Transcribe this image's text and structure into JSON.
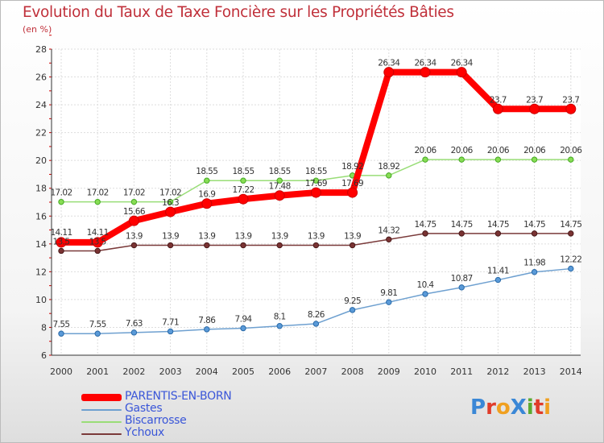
{
  "title": "Evolution du Taux de Taxe Foncière sur les Propriétés Bâties",
  "unit": "(en %)",
  "logo": {
    "text": "ProXiti",
    "colors": [
      "#3a87d6",
      "#e03c2a",
      "#f0a020",
      "#3a87d6",
      "#5aaa30",
      "#e03c2a",
      "#f0a020"
    ]
  },
  "chart_data": {
    "type": "line",
    "x": [
      "2000",
      "2001",
      "2002",
      "2003",
      "2004",
      "2005",
      "2006",
      "2007",
      "2008",
      "2009",
      "2010",
      "2011",
      "2012",
      "2013",
      "2014"
    ],
    "ylim": [
      6,
      28
    ],
    "yticks": [
      6,
      8,
      10,
      12,
      14,
      16,
      18,
      20,
      22,
      24,
      26,
      28
    ],
    "grid": true,
    "legend_position": "bottom-left",
    "series": [
      {
        "name": "PARENTIS-EN-BORN",
        "color": "#ff0000",
        "values": [
          14.11,
          14.11,
          15.66,
          16.3,
          16.9,
          17.22,
          17.48,
          17.69,
          17.69,
          26.34,
          26.34,
          26.34,
          23.7,
          23.7,
          23.7
        ],
        "labels": [
          "14.11",
          "14.11",
          "15.66",
          "16.3",
          "16.9",
          "17.22",
          "17.48",
          "17.69",
          "17.69",
          "26.34",
          "26.34",
          "26.34",
          "23.7",
          "23.7",
          "23.7"
        ]
      },
      {
        "name": "Gastes",
        "color": "#6ea0d0",
        "values": [
          7.55,
          7.55,
          7.63,
          7.71,
          7.86,
          7.94,
          8.1,
          8.26,
          9.25,
          9.81,
          10.4,
          10.87,
          11.41,
          11.98,
          12.22
        ],
        "labels": [
          "7.55",
          "7.55",
          "7.63",
          "7.71",
          "7.86",
          "7.94",
          "8.1",
          "8.26",
          "9.25",
          "9.81",
          "10.4",
          "10.87",
          "11.41",
          "11.98",
          "12.22"
        ]
      },
      {
        "name": "Biscarrosse",
        "color": "#99dd77",
        "values": [
          17.02,
          17.02,
          17.02,
          17.02,
          18.55,
          18.55,
          18.55,
          18.55,
          18.92,
          18.92,
          20.06,
          20.06,
          20.06,
          20.06,
          20.06
        ],
        "labels": [
          "17.02",
          "17.02",
          "17.02",
          "17.02",
          "18.55",
          "18.55",
          "18.55",
          "18.55",
          "18.92",
          "18.92",
          "20.06",
          "20.06",
          "20.06",
          "20.06",
          "20.06"
        ]
      },
      {
        "name": "Ychoux",
        "color": "#7a3a3a",
        "values": [
          13.5,
          13.5,
          13.9,
          13.9,
          13.9,
          13.9,
          13.9,
          13.9,
          13.9,
          14.32,
          14.75,
          14.75,
          14.75,
          14.75,
          14.75
        ],
        "labels": [
          "13.5",
          "13.5",
          "13.9",
          "13.9",
          "13.9",
          "13.9",
          "13.9",
          "13.9",
          "13.9",
          "14.32",
          "14.75",
          "14.75",
          "14.75",
          "14.75",
          "14.75"
        ]
      }
    ]
  }
}
